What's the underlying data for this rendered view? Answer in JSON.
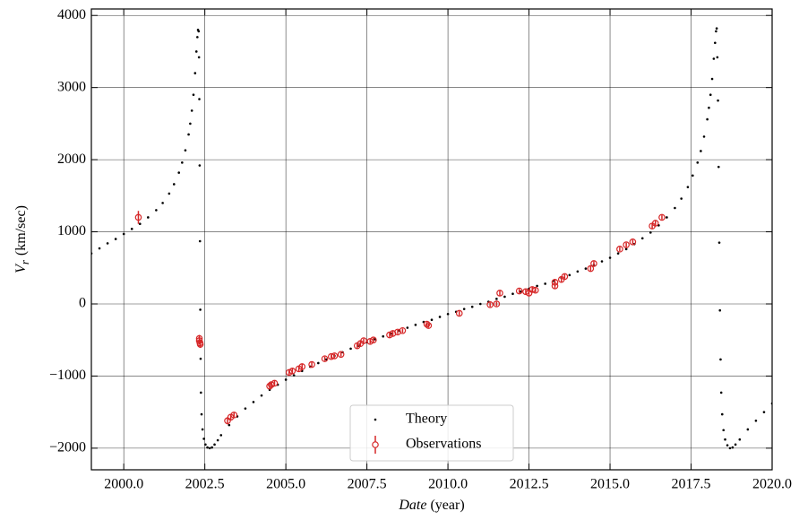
{
  "chart_data": {
    "type": "scatter",
    "xlabel": {
      "italic": "Date",
      "rest": "(year)"
    },
    "ylabel": {
      "symbol": "V",
      "subscript": "r",
      "rest": "(km/sec)"
    },
    "xlim": [
      1999.0,
      2020.0
    ],
    "ylim": [
      -2300,
      4090
    ],
    "xticks": [
      {
        "value": 2000,
        "label": "2000.0"
      },
      {
        "value": 2002.5,
        "label": "2002.5"
      },
      {
        "value": 2005,
        "label": "2005.0"
      },
      {
        "value": 2007.5,
        "label": "2007.5"
      },
      {
        "value": 2010,
        "label": "2010.0"
      },
      {
        "value": 2012.5,
        "label": "2012.5"
      },
      {
        "value": 2015,
        "label": "2015.0"
      },
      {
        "value": 2017.5,
        "label": "2017.5"
      },
      {
        "value": 2020,
        "label": "2020.0"
      }
    ],
    "yticks": [
      {
        "value": -2000,
        "label": "−2000"
      },
      {
        "value": -1000,
        "label": "−1000"
      },
      0,
      1000,
      2000,
      3000,
      4000
    ],
    "grid": true,
    "legend": "lower center",
    "series": [
      {
        "name": "Theory",
        "color": "#000000",
        "marker": "dot",
        "x": [
          1999.0,
          1999.25,
          1999.5,
          1999.75,
          2000.0,
          2000.25,
          2000.5,
          2000.75,
          2001.0,
          2001.2,
          2001.4,
          2001.55,
          2001.7,
          2001.8,
          2001.9,
          2002.0,
          2002.05,
          2002.1,
          2002.15,
          2002.2,
          2002.24,
          2002.27,
          2002.29,
          2002.31,
          2002.32,
          2002.33,
          2002.34,
          2002.35,
          2002.36,
          2002.37,
          2002.38,
          2002.4,
          2002.43,
          2002.47,
          2002.52,
          2002.58,
          2002.65,
          2002.72,
          2002.8,
          2002.9,
          2003.0,
          2003.25,
          2003.5,
          2003.75,
          2004.0,
          2004.25,
          2004.5,
          2004.75,
          2005.0,
          2005.25,
          2005.5,
          2005.75,
          2006.0,
          2006.25,
          2006.5,
          2006.75,
          2007.0,
          2007.25,
          2007.5,
          2007.75,
          2008.0,
          2008.25,
          2008.5,
          2008.75,
          2009.0,
          2009.25,
          2009.5,
          2009.75,
          2010.0,
          2010.25,
          2010.5,
          2010.75,
          2011.0,
          2011.25,
          2011.5,
          2011.75,
          2012.0,
          2012.25,
          2012.5,
          2012.75,
          2013.0,
          2013.25,
          2013.5,
          2013.75,
          2014.0,
          2014.25,
          2014.5,
          2014.75,
          2015.0,
          2015.25,
          2015.5,
          2015.75,
          2016.0,
          2016.25,
          2016.5,
          2016.75,
          2017.0,
          2017.2,
          2017.4,
          2017.55,
          2017.7,
          2017.8,
          2017.9,
          2018.0,
          2018.05,
          2018.1,
          2018.15,
          2018.2,
          2018.24,
          2018.27,
          2018.29,
          2018.31,
          2018.33,
          2018.35,
          2018.37,
          2018.39,
          2018.41,
          2018.43,
          2018.46,
          2018.5,
          2018.55,
          2018.62,
          2018.7,
          2018.78,
          2018.87,
          2019.0,
          2019.25,
          2019.5,
          2019.75,
          2020.0
        ],
        "values": [
          700,
          770,
          840,
          900,
          970,
          1040,
          1110,
          1200,
          1300,
          1400,
          1530,
          1660,
          1820,
          1960,
          2130,
          2350,
          2500,
          2680,
          2900,
          3200,
          3500,
          3700,
          3800,
          3780,
          3420,
          2840,
          1920,
          870,
          -80,
          -760,
          -1230,
          -1530,
          -1740,
          -1870,
          -1950,
          -1990,
          -2000,
          -1990,
          -1950,
          -1890,
          -1820,
          -1680,
          -1560,
          -1450,
          -1360,
          -1270,
          -1190,
          -1120,
          -1050,
          -990,
          -930,
          -870,
          -820,
          -770,
          -720,
          -670,
          -620,
          -580,
          -530,
          -490,
          -450,
          -410,
          -370,
          -330,
          -290,
          -250,
          -220,
          -180,
          -140,
          -110,
          -70,
          -40,
          0,
          30,
          70,
          100,
          140,
          170,
          210,
          250,
          280,
          320,
          360,
          400,
          450,
          490,
          540,
          590,
          640,
          700,
          760,
          830,
          910,
          990,
          1090,
          1200,
          1330,
          1460,
          1620,
          1780,
          1960,
          2120,
          2320,
          2560,
          2720,
          2900,
          3120,
          3400,
          3620,
          3780,
          3820,
          3420,
          2820,
          1900,
          850,
          -90,
          -770,
          -1230,
          -1530,
          -1750,
          -1880,
          -1960,
          -2000,
          -1990,
          -1950,
          -1880,
          -1740,
          -1620,
          -1500,
          -1380
        ]
      },
      {
        "name": "Observations",
        "color": "#d62728",
        "marker": "circle-errorbar",
        "x": [
          2000.45,
          2002.33,
          2002.33,
          2002.35,
          2002.36,
          2003.2,
          2003.3,
          2003.4,
          2004.5,
          2004.55,
          2004.65,
          2005.1,
          2005.2,
          2005.4,
          2005.5,
          2005.8,
          2006.2,
          2006.4,
          2006.5,
          2006.7,
          2007.2,
          2007.3,
          2007.4,
          2007.6,
          2007.7,
          2008.2,
          2008.3,
          2008.45,
          2008.6,
          2009.35,
          2009.4,
          2010.35,
          2011.3,
          2011.5,
          2011.6,
          2012.2,
          2012.4,
          2012.5,
          2012.6,
          2012.7,
          2013.3,
          2013.3,
          2013.5,
          2013.6,
          2014.4,
          2014.5,
          2015.3,
          2015.5,
          2015.7,
          2016.3,
          2016.4,
          2016.6
        ],
        "values": [
          1200,
          -480,
          -510,
          -540,
          -560,
          -1620,
          -1570,
          -1540,
          -1140,
          -1120,
          -1100,
          -950,
          -930,
          -900,
          -870,
          -840,
          -760,
          -730,
          -720,
          -700,
          -580,
          -550,
          -510,
          -520,
          -500,
          -430,
          -410,
          -390,
          -370,
          -280,
          -300,
          -130,
          -10,
          0,
          150,
          180,
          170,
          150,
          200,
          190,
          300,
          250,
          340,
          380,
          490,
          560,
          760,
          820,
          860,
          1080,
          1120,
          1200
        ],
        "errors": [
          90,
          50,
          50,
          50,
          50,
          50,
          40,
          40,
          40,
          40,
          40,
          40,
          40,
          40,
          40,
          40,
          30,
          30,
          30,
          30,
          40,
          40,
          30,
          30,
          30,
          40,
          40,
          30,
          30,
          30,
          30,
          30,
          30,
          30,
          40,
          30,
          40,
          40,
          40,
          30,
          40,
          40,
          40,
          30,
          40,
          30,
          30,
          30,
          30,
          40,
          40,
          30
        ]
      }
    ]
  }
}
